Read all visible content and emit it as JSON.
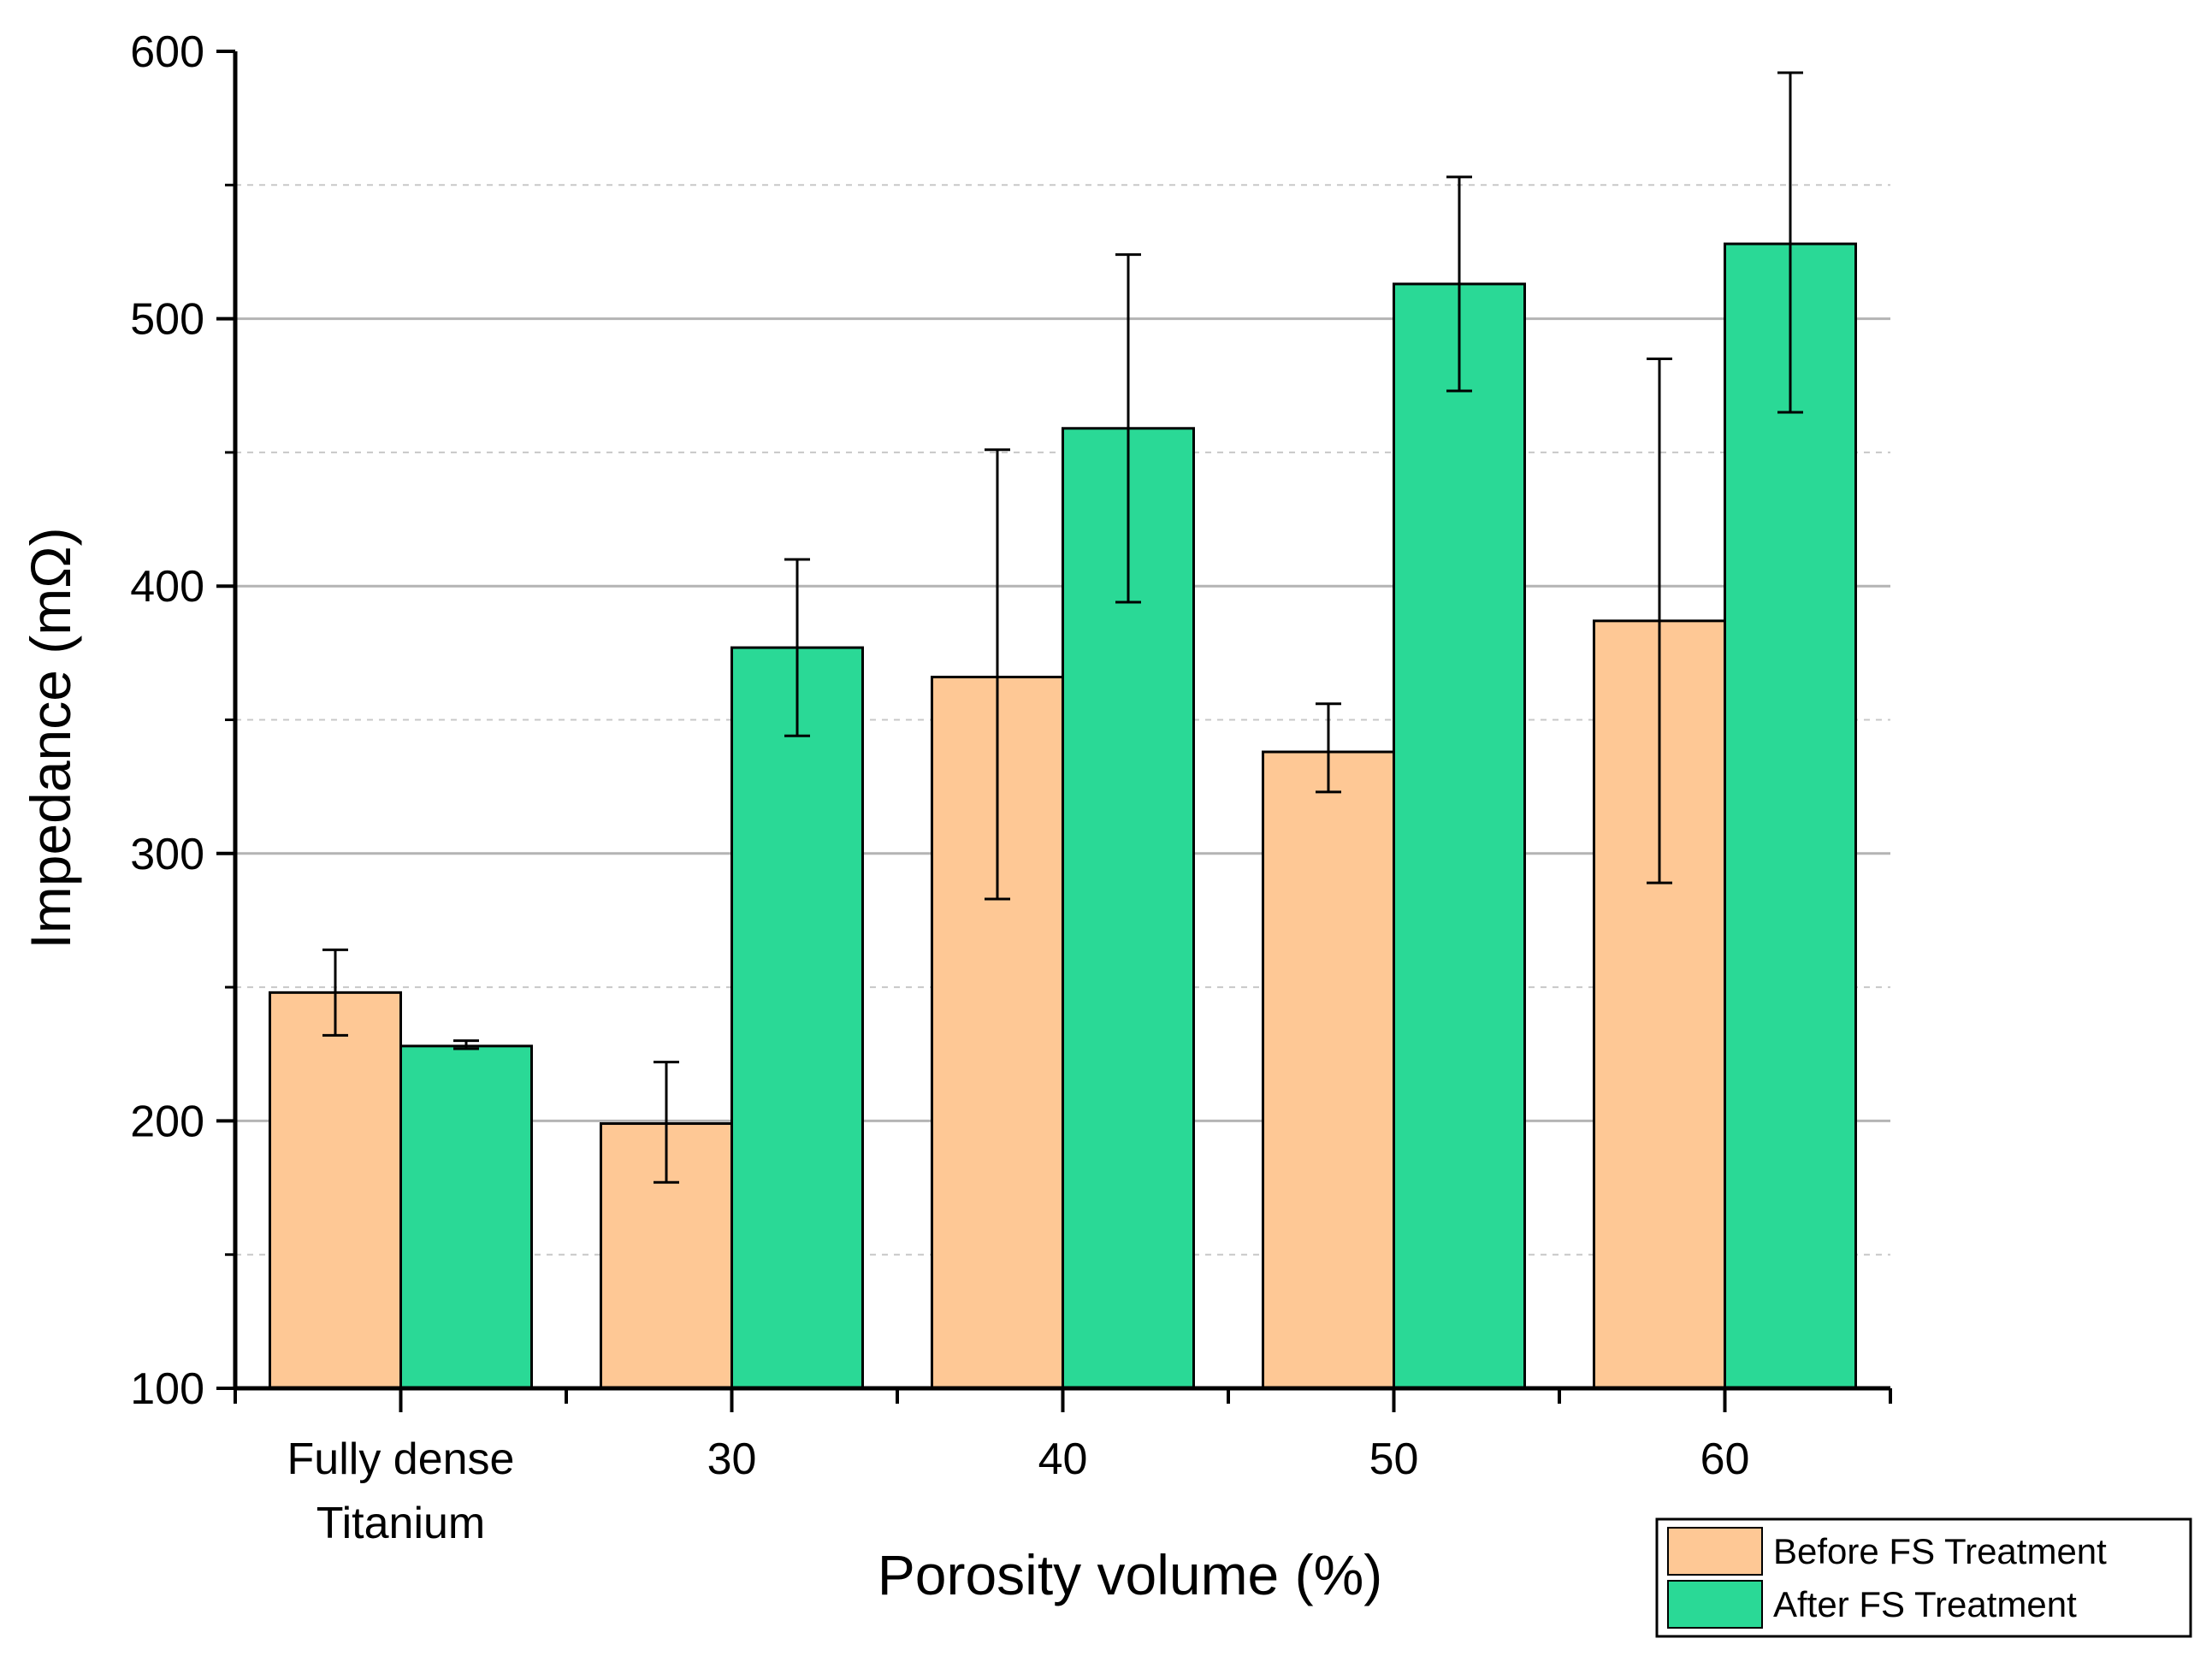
{
  "chart_data": {
    "type": "bar",
    "title": "",
    "xlabel": "Porosity volume (%)",
    "ylabel": "Impedance (mΩ)",
    "categories": [
      [
        "Fully dense",
        "Titanium"
      ],
      [
        "30"
      ],
      [
        "40"
      ],
      [
        "50"
      ],
      [
        "60"
      ]
    ],
    "series": [
      {
        "name": "Before FS Treatment",
        "color": "#FEC895",
        "values": [
          248,
          199,
          366,
          338,
          387
        ],
        "error_low": [
          232,
          177,
          283,
          323,
          289
        ],
        "error_high": [
          264,
          222,
          451,
          356,
          485
        ]
      },
      {
        "name": "After FS Treatment",
        "color": "#2AD996",
        "values": [
          228,
          377,
          459,
          513,
          528
        ],
        "error_low": [
          227,
          344,
          394,
          473,
          465
        ],
        "error_high": [
          230,
          410,
          524,
          553,
          592
        ]
      }
    ],
    "ylim": [
      100,
      600
    ],
    "yticks": [
      100,
      200,
      300,
      400,
      500,
      600
    ],
    "minor_gridlines": [
      150,
      250,
      350,
      450,
      550
    ],
    "grid": "horizontal",
    "legend_position": "bottom-right"
  }
}
